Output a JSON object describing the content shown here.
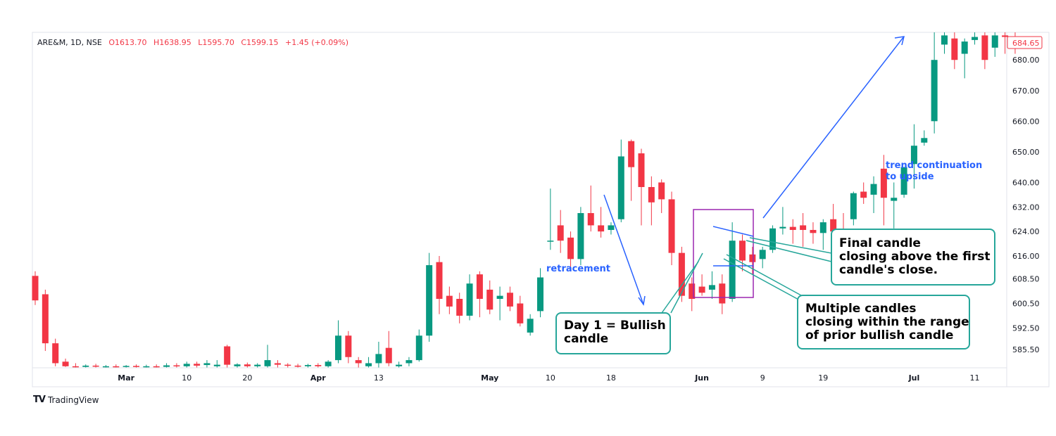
{
  "header": {
    "symbol": "ARE&M, 1D, NSE",
    "open": "O1613.70",
    "high": "H1638.95",
    "low": "L1595.70",
    "close": "C1599.15",
    "change": "+1.45 (+0.09%)"
  },
  "brand": {
    "name": "TradingView",
    "logo": "TV"
  },
  "callouts": {
    "day1": [
      "Day 1 = Bullish",
      "candle"
    ],
    "final": [
      "Final candle",
      "closing above the first",
      "candle's close."
    ],
    "multiple": [
      "Multiple candles",
      "closing within the range",
      "of prior bullish candle"
    ]
  },
  "annotations": {
    "retracement": "retracement",
    "trend": [
      "trend continuation",
      "to upside"
    ]
  },
  "colors": {
    "up": "#089981",
    "down": "#f23645",
    "arrow": "#2962ff",
    "callout": "#26a69a",
    "box": "#9c27b0"
  },
  "chart_data": {
    "type": "candlestick",
    "y_range": [
      579.5,
      689.0
    ],
    "price_label": "684.65",
    "y_ticks": [
      "680.00",
      "670.00",
      "660.00",
      "650.00",
      "640.00",
      "632.00",
      "624.00",
      "616.00",
      "608.50",
      "600.50",
      "592.50",
      "585.50"
    ],
    "x_labels": [
      {
        "text": "Mar",
        "bar": 9,
        "bold": true
      },
      {
        "text": "10",
        "bar": 15,
        "bold": false
      },
      {
        "text": "20",
        "bar": 21,
        "bold": false
      },
      {
        "text": "Apr",
        "bar": 28,
        "bold": true
      },
      {
        "text": "13",
        "bar": 34,
        "bold": false
      },
      {
        "text": "May",
        "bar": 45,
        "bold": true
      },
      {
        "text": "10",
        "bar": 51,
        "bold": false
      },
      {
        "text": "18",
        "bar": 57,
        "bold": false
      },
      {
        "text": "Jun",
        "bar": 66,
        "bold": true
      },
      {
        "text": "9",
        "bar": 72,
        "bold": false
      },
      {
        "text": "19",
        "bar": 78,
        "bold": false
      },
      {
        "text": "Jul",
        "bar": 87,
        "bold": true
      },
      {
        "text": "11",
        "bar": 93,
        "bold": false
      }
    ],
    "candles": [
      {
        "o": 609.5,
        "h": 611.0,
        "l": 600.0,
        "c": 601.5
      },
      {
        "o": 603.5,
        "h": 605.0,
        "l": 585.0,
        "c": 587.5
      },
      {
        "o": 587.5,
        "h": 589.0,
        "l": 580.0,
        "c": 581.0
      },
      {
        "o": 581.5,
        "h": 582.5,
        "l": 579.8,
        "c": 580.0
      },
      {
        "o": 580.0,
        "h": 581.0,
        "l": 579.6,
        "c": 579.8
      },
      {
        "o": 579.8,
        "h": 580.6,
        "l": 579.6,
        "c": 580.2
      },
      {
        "o": 580.2,
        "h": 580.8,
        "l": 579.6,
        "c": 579.9
      },
      {
        "o": 579.9,
        "h": 580.4,
        "l": 579.6,
        "c": 580.0
      },
      {
        "o": 580.0,
        "h": 580.6,
        "l": 579.6,
        "c": 579.8
      },
      {
        "o": 579.8,
        "h": 580.4,
        "l": 579.6,
        "c": 580.1
      },
      {
        "o": 580.1,
        "h": 580.6,
        "l": 579.6,
        "c": 579.9
      },
      {
        "o": 579.9,
        "h": 580.5,
        "l": 579.6,
        "c": 580.0
      },
      {
        "o": 580.0,
        "h": 580.6,
        "l": 579.6,
        "c": 579.8
      },
      {
        "o": 579.8,
        "h": 581.0,
        "l": 579.6,
        "c": 580.3
      },
      {
        "o": 580.3,
        "h": 581.0,
        "l": 579.6,
        "c": 580.0
      },
      {
        "o": 580.0,
        "h": 581.5,
        "l": 579.6,
        "c": 580.8
      },
      {
        "o": 580.8,
        "h": 581.5,
        "l": 579.6,
        "c": 580.2
      },
      {
        "o": 580.4,
        "h": 582.0,
        "l": 579.6,
        "c": 581.0
      },
      {
        "o": 580.0,
        "h": 582.0,
        "l": 579.6,
        "c": 580.5
      },
      {
        "o": 586.5,
        "h": 587.0,
        "l": 579.6,
        "c": 580.5
      },
      {
        "o": 580.0,
        "h": 581.0,
        "l": 579.6,
        "c": 580.6
      },
      {
        "o": 580.6,
        "h": 581.2,
        "l": 579.6,
        "c": 580.0
      },
      {
        "o": 580.0,
        "h": 581.0,
        "l": 579.6,
        "c": 580.5
      },
      {
        "o": 580.0,
        "h": 587.0,
        "l": 579.6,
        "c": 582.0
      },
      {
        "o": 581.0,
        "h": 582.0,
        "l": 579.6,
        "c": 580.5
      },
      {
        "o": 580.5,
        "h": 581.0,
        "l": 579.6,
        "c": 580.2
      },
      {
        "o": 580.2,
        "h": 580.8,
        "l": 579.6,
        "c": 580.0
      },
      {
        "o": 580.0,
        "h": 580.8,
        "l": 579.6,
        "c": 580.4
      },
      {
        "o": 580.4,
        "h": 581.0,
        "l": 579.6,
        "c": 580.0
      },
      {
        "o": 580.0,
        "h": 582.0,
        "l": 579.6,
        "c": 581.5
      },
      {
        "o": 582.0,
        "h": 595.0,
        "l": 581.0,
        "c": 590.0
      },
      {
        "o": 590.0,
        "h": 591.5,
        "l": 581.0,
        "c": 583.0
      },
      {
        "o": 582.0,
        "h": 583.0,
        "l": 579.6,
        "c": 581.0
      },
      {
        "o": 580.0,
        "h": 583.0,
        "l": 579.6,
        "c": 581.0
      },
      {
        "o": 581.0,
        "h": 588.0,
        "l": 579.6,
        "c": 584.0
      },
      {
        "o": 586.0,
        "h": 591.5,
        "l": 580.0,
        "c": 581.0
      },
      {
        "o": 580.0,
        "h": 581.5,
        "l": 579.6,
        "c": 580.5
      },
      {
        "o": 581.0,
        "h": 583.0,
        "l": 580.0,
        "c": 582.0
      },
      {
        "o": 582.0,
        "h": 592.0,
        "l": 581.5,
        "c": 590.0
      },
      {
        "o": 590.0,
        "h": 617.0,
        "l": 588.0,
        "c": 613.0
      },
      {
        "o": 614.0,
        "h": 616.0,
        "l": 597.0,
        "c": 602.0
      },
      {
        "o": 603.0,
        "h": 606.0,
        "l": 597.0,
        "c": 599.5
      },
      {
        "o": 602.0,
        "h": 604.0,
        "l": 594.0,
        "c": 596.5
      },
      {
        "o": 596.5,
        "h": 610.0,
        "l": 595.0,
        "c": 607.0
      },
      {
        "o": 610.0,
        "h": 611.0,
        "l": 596.0,
        "c": 602.0
      },
      {
        "o": 605.0,
        "h": 608.0,
        "l": 597.0,
        "c": 598.5
      },
      {
        "o": 602.0,
        "h": 606.0,
        "l": 595.0,
        "c": 603.0
      },
      {
        "o": 604.0,
        "h": 606.0,
        "l": 598.0,
        "c": 599.5
      },
      {
        "o": 600.5,
        "h": 603.0,
        "l": 593.0,
        "c": 594.0
      },
      {
        "o": 591.0,
        "h": 597.0,
        "l": 590.0,
        "c": 595.5
      },
      {
        "o": 598.0,
        "h": 612.0,
        "l": 596.0,
        "c": 609.0
      },
      {
        "o": 621.0,
        "h": 638.0,
        "l": 618.0,
        "c": 621.0
      },
      {
        "o": 626.0,
        "h": 631.0,
        "l": 617.0,
        "c": 621.0
      },
      {
        "o": 622.0,
        "h": 624.0,
        "l": 611.0,
        "c": 615.0
      },
      {
        "o": 615.0,
        "h": 632.0,
        "l": 613.0,
        "c": 630.0
      },
      {
        "o": 630.0,
        "h": 639.0,
        "l": 624.0,
        "c": 626.0
      },
      {
        "o": 626.0,
        "h": 632.0,
        "l": 622.0,
        "c": 624.0
      },
      {
        "o": 624.5,
        "h": 627.0,
        "l": 623.0,
        "c": 626.0
      },
      {
        "o": 628.0,
        "h": 654.0,
        "l": 627.0,
        "c": 648.5
      },
      {
        "o": 653.5,
        "h": 654.0,
        "l": 634.0,
        "c": 645.0
      },
      {
        "o": 649.5,
        "h": 651.0,
        "l": 626.0,
        "c": 638.5
      },
      {
        "o": 638.5,
        "h": 642.0,
        "l": 626.0,
        "c": 633.5
      },
      {
        "o": 640.0,
        "h": 641.0,
        "l": 630.0,
        "c": 634.5
      },
      {
        "o": 634.5,
        "h": 637.0,
        "l": 613.0,
        "c": 617.0
      },
      {
        "o": 617.0,
        "h": 619.0,
        "l": 601.0,
        "c": 603.0
      },
      {
        "o": 607.0,
        "h": 609.0,
        "l": 598.0,
        "c": 602.0
      },
      {
        "o": 606.0,
        "h": 610.0,
        "l": 603.0,
        "c": 604.0
      },
      {
        "o": 605.0,
        "h": 611.0,
        "l": 602.0,
        "c": 606.5
      },
      {
        "o": 607.0,
        "h": 610.0,
        "l": 597.0,
        "c": 600.5
      },
      {
        "o": 602.0,
        "h": 627.0,
        "l": 601.0,
        "c": 621.0
      },
      {
        "o": 621.0,
        "h": 623.0,
        "l": 611.0,
        "c": 614.5
      },
      {
        "o": 616.5,
        "h": 619.0,
        "l": 610.0,
        "c": 614.0
      },
      {
        "o": 615.0,
        "h": 619.0,
        "l": 612.0,
        "c": 618.0
      },
      {
        "o": 618.0,
        "h": 626.0,
        "l": 617.0,
        "c": 625.0
      },
      {
        "o": 625.0,
        "h": 632.0,
        "l": 623.0,
        "c": 625.5
      },
      {
        "o": 625.5,
        "h": 628.0,
        "l": 620.0,
        "c": 624.5
      },
      {
        "o": 626.0,
        "h": 630.0,
        "l": 619.0,
        "c": 624.5
      },
      {
        "o": 624.5,
        "h": 627.0,
        "l": 620.0,
        "c": 623.5
      },
      {
        "o": 623.5,
        "h": 628.0,
        "l": 618.0,
        "c": 627.0
      },
      {
        "o": 628.0,
        "h": 633.0,
        "l": 621.0,
        "c": 624.0
      },
      {
        "o": 624.0,
        "h": 630.0,
        "l": 620.0,
        "c": 623.5
      },
      {
        "o": 628.0,
        "h": 637.0,
        "l": 626.0,
        "c": 636.5
      },
      {
        "o": 637.0,
        "h": 640.0,
        "l": 633.0,
        "c": 635.0
      },
      {
        "o": 636.0,
        "h": 642.0,
        "l": 630.0,
        "c": 639.5
      },
      {
        "o": 644.5,
        "h": 649.0,
        "l": 626.0,
        "c": 635.0
      },
      {
        "o": 634.0,
        "h": 640.0,
        "l": 625.0,
        "c": 635.0
      },
      {
        "o": 636.0,
        "h": 645.0,
        "l": 635.0,
        "c": 645.0
      },
      {
        "o": 646.0,
        "h": 659.0,
        "l": 638.0,
        "c": 652.0
      },
      {
        "o": 653.0,
        "h": 657.0,
        "l": 652.0,
        "c": 654.5
      },
      {
        "o": 660.0,
        "h": 689.0,
        "l": 656.0,
        "c": 680.0
      },
      {
        "o": 685.0,
        "h": 689.0,
        "l": 682.0,
        "c": 688.0
      },
      {
        "o": 687.0,
        "h": 689.0,
        "l": 677.0,
        "c": 680.0
      },
      {
        "o": 682.0,
        "h": 687.0,
        "l": 674.0,
        "c": 686.0
      },
      {
        "o": 686.5,
        "h": 689.0,
        "l": 685.0,
        "c": 687.5
      },
      {
        "o": 688.0,
        "h": 689.0,
        "l": 677.0,
        "c": 680.0
      },
      {
        "o": 684.0,
        "h": 689.0,
        "l": 681.0,
        "c": 688.0
      },
      {
        "o": 688.0,
        "h": 689.0,
        "l": 682.0,
        "c": 687.5
      },
      {
        "o": 687.5,
        "h": 689.0,
        "l": 682.0,
        "c": 685.0
      }
    ]
  }
}
